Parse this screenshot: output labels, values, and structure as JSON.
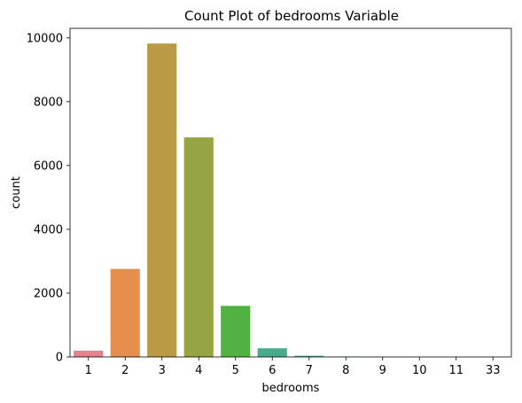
{
  "chart_data": {
    "type": "bar",
    "title": "Count Plot of bedrooms Variable",
    "xlabel": "bedrooms",
    "ylabel": "count",
    "categories": [
      "1",
      "2",
      "3",
      "4",
      "5",
      "6",
      "7",
      "8",
      "9",
      "10",
      "11",
      "33"
    ],
    "values": [
      199,
      2760,
      9824,
      6882,
      1601,
      272,
      38,
      13,
      6,
      3,
      1,
      1
    ],
    "colors": [
      "#e8808e",
      "#e58e4d",
      "#ba9a45",
      "#98a443",
      "#51b243",
      "#45ad8d",
      "#46a99f",
      "#48a6ad",
      "#51a2c7",
      "#9b8fd8",
      "#d37ee0",
      "#e37abb"
    ],
    "ylim": [
      0,
      10300
    ],
    "yticks": [
      0,
      2000,
      4000,
      6000,
      8000,
      10000
    ],
    "grid": false,
    "legend": "none"
  }
}
